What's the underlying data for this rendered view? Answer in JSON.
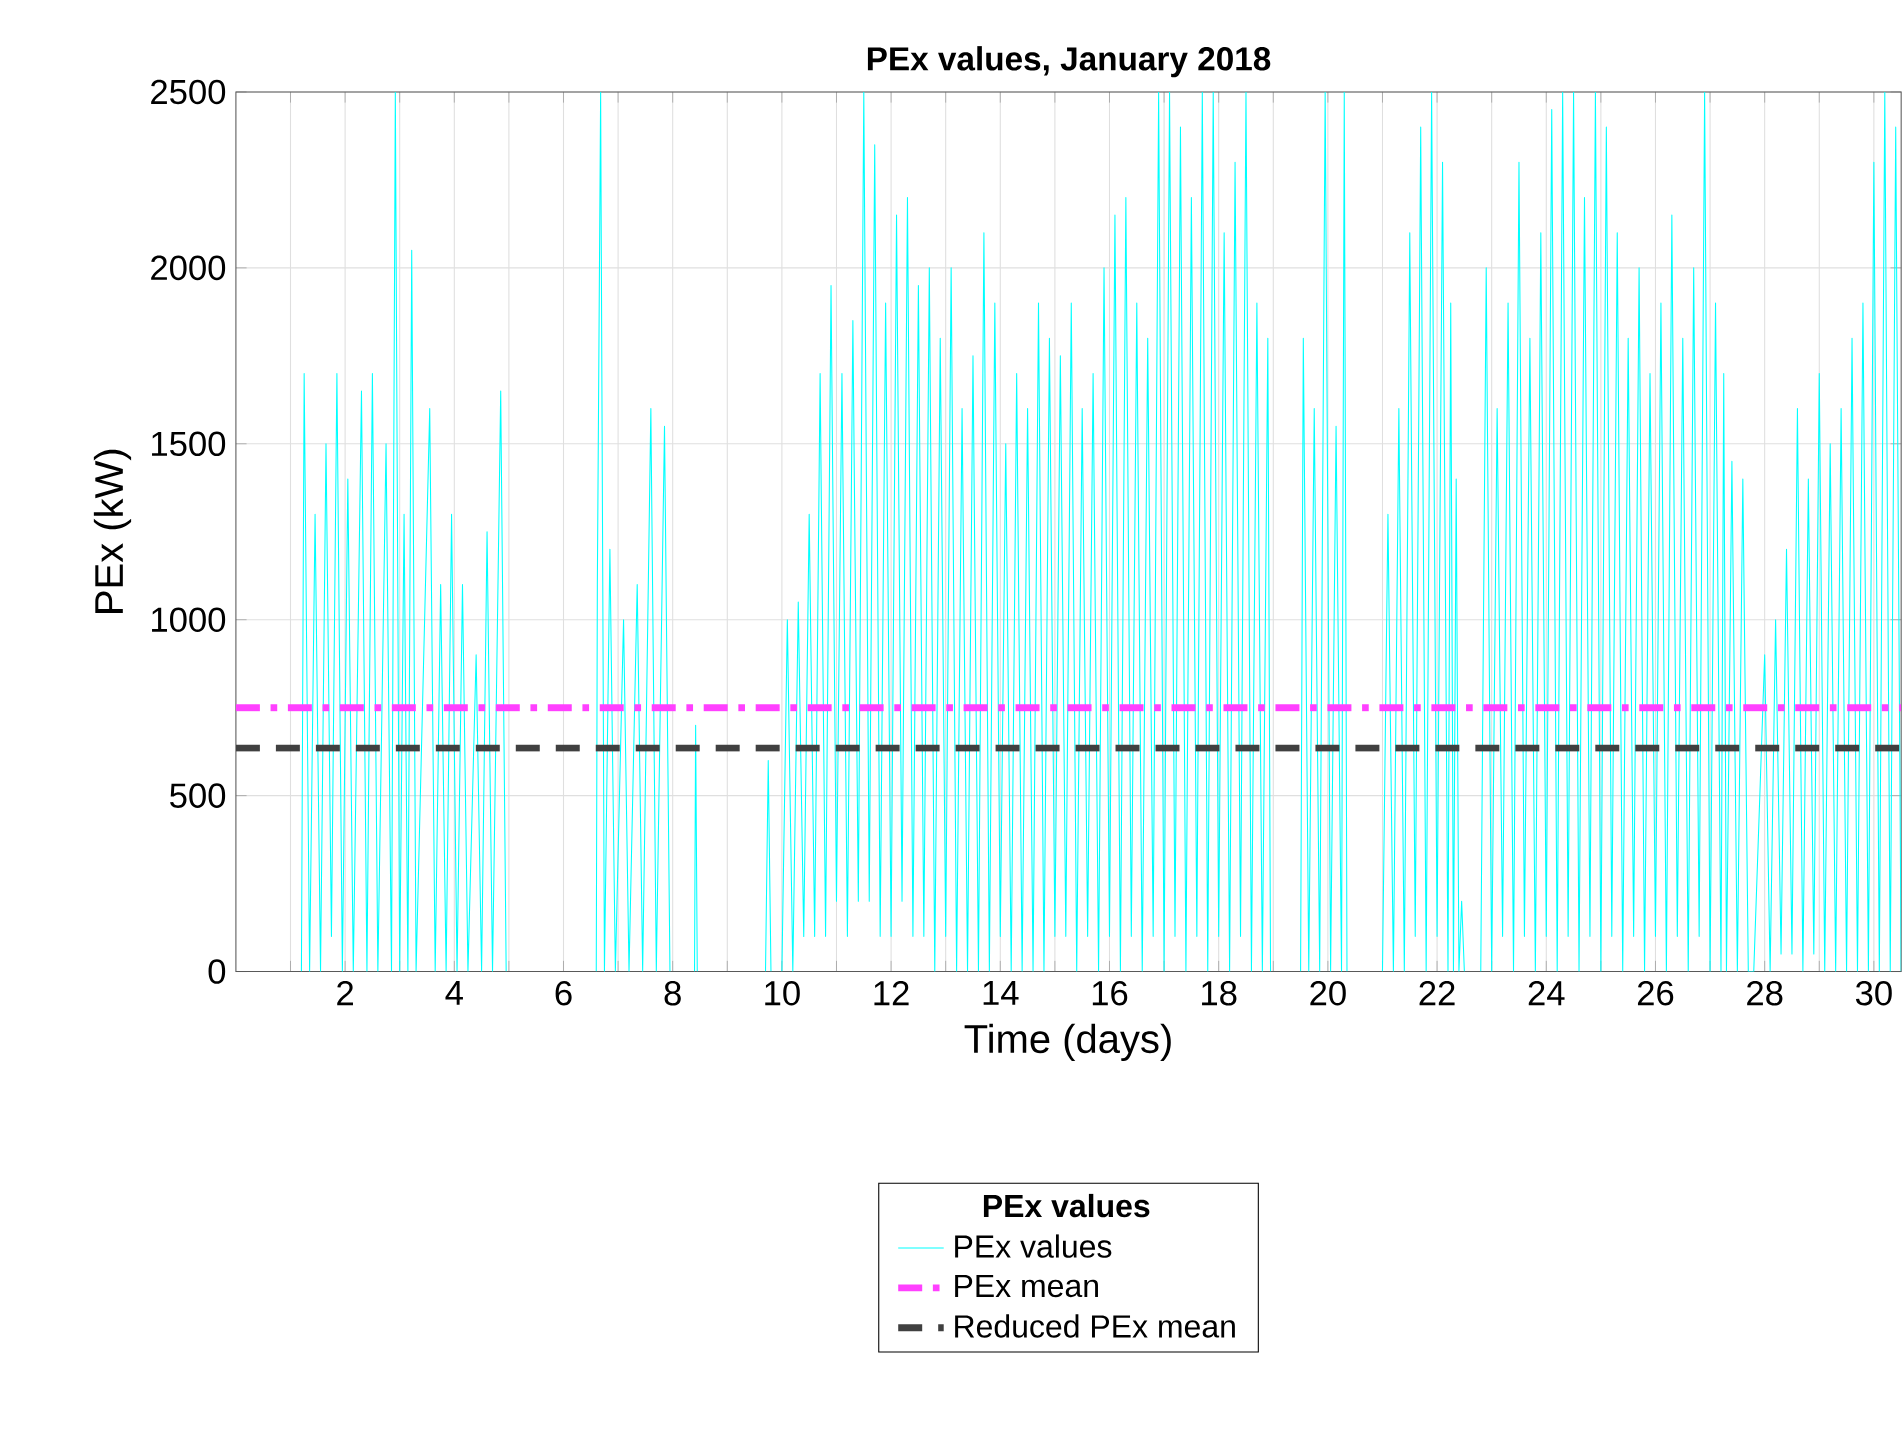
{
  "chart_data": {
    "type": "line",
    "title": "PEx values, January 2018",
    "xlabel": "Time (days)",
    "ylabel": "PEx (kW)",
    "legend_title": "PEx values",
    "legend": "bottom",
    "grid": true,
    "xlim": [
      0,
      30.5
    ],
    "ylim": [
      0,
      2500
    ],
    "xticks": [
      {
        "value": 1,
        "label": null
      },
      2,
      {
        "value": 3,
        "label": null
      },
      4,
      {
        "value": 5,
        "label": null
      },
      6,
      {
        "value": 7,
        "label": null
      },
      8,
      {
        "value": 9,
        "label": null
      },
      10,
      {
        "value": 11,
        "label": null
      },
      12,
      {
        "value": 13,
        "label": null
      },
      14,
      {
        "value": 15,
        "label": null
      },
      16,
      {
        "value": 17,
        "label": null
      },
      18,
      {
        "value": 19,
        "label": null
      },
      20,
      {
        "value": 21,
        "label": null
      },
      22,
      {
        "value": 23,
        "label": null
      },
      24,
      {
        "value": 25,
        "label": null
      },
      26,
      {
        "value": 27,
        "label": null
      },
      28,
      {
        "value": 29,
        "label": null
      },
      30
    ],
    "yticks": [
      0,
      500,
      1000,
      1500,
      2000,
      2500
    ],
    "series": [
      {
        "name": "PEx values",
        "color": "#00ffff",
        "x": [
          1.2,
          1.25,
          1.35,
          1.45,
          1.55,
          1.65,
          1.75,
          1.85,
          1.95,
          2.05,
          2.15,
          2.3,
          2.4,
          2.5,
          2.6,
          2.75,
          2.85,
          2.92,
          3.0,
          3.08,
          3.15,
          3.22,
          3.3,
          3.55,
          3.65,
          3.75,
          3.85,
          3.95,
          4.05,
          4.15,
          4.25,
          4.4,
          4.5,
          4.6,
          4.7,
          4.85,
          4.95,
          5.5,
          6.6,
          6.62,
          6.68,
          6.75,
          6.85,
          6.95,
          7.1,
          7.2,
          7.35,
          7.45,
          7.6,
          7.7,
          7.85,
          7.95,
          8.1,
          8.4,
          8.42,
          8.45,
          9.0,
          9.7,
          9.75,
          9.8,
          9.9,
          10.0,
          10.1,
          10.2,
          10.3,
          10.4,
          10.5,
          10.6,
          10.7,
          10.8,
          10.9,
          11.0,
          11.1,
          11.2,
          11.3,
          11.4,
          11.5,
          11.6,
          11.7,
          11.8,
          11.9,
          12.0,
          12.1,
          12.2,
          12.3,
          12.4,
          12.5,
          12.6,
          12.7,
          12.8,
          12.9,
          13.0,
          13.1,
          13.2,
          13.3,
          13.4,
          13.5,
          13.6,
          13.7,
          13.8,
          13.9,
          14.0,
          14.1,
          14.2,
          14.3,
          14.4,
          14.5,
          14.6,
          14.7,
          14.8,
          14.9,
          15.0,
          15.1,
          15.2,
          15.3,
          15.4,
          15.5,
          15.6,
          15.7,
          15.8,
          15.9,
          16.0,
          16.1,
          16.2,
          16.3,
          16.4,
          16.5,
          16.6,
          16.7,
          16.8,
          16.9,
          17.0,
          17.1,
          17.2,
          17.3,
          17.4,
          17.5,
          17.6,
          17.7,
          17.8,
          17.9,
          18.0,
          18.1,
          18.2,
          18.3,
          18.4,
          18.5,
          18.6,
          18.7,
          18.8,
          18.9,
          18.95,
          19.2,
          19.5,
          19.55,
          19.65,
          19.75,
          19.85,
          19.95,
          20.05,
          20.15,
          20.25,
          20.3,
          20.35,
          20.6,
          21.0,
          21.1,
          21.2,
          21.3,
          21.4,
          21.5,
          21.6,
          21.7,
          21.8,
          21.9,
          22.0,
          22.1,
          22.2,
          22.25,
          22.3,
          22.35,
          22.4,
          22.45,
          22.5,
          22.6,
          22.8,
          22.9,
          23.0,
          23.1,
          23.2,
          23.3,
          23.4,
          23.5,
          23.6,
          23.7,
          23.8,
          23.9,
          24.0,
          24.1,
          24.2,
          24.3,
          24.4,
          24.5,
          24.6,
          24.7,
          24.8,
          24.9,
          25.0,
          25.1,
          25.2,
          25.3,
          25.4,
          25.5,
          25.6,
          25.7,
          25.8,
          25.9,
          26.0,
          26.1,
          26.2,
          26.3,
          26.4,
          26.5,
          26.6,
          26.7,
          26.8,
          26.9,
          27.0,
          27.1,
          27.2,
          27.25,
          27.3,
          27.4,
          27.5,
          27.6,
          27.7,
          27.8,
          28.0,
          28.1,
          28.2,
          28.3,
          28.4,
          28.5,
          28.6,
          28.7,
          28.8,
          28.9,
          29.0,
          29.1,
          29.2,
          29.3,
          29.4,
          29.5,
          29.6,
          29.7,
          29.8,
          29.9,
          30.0,
          30.1,
          30.2,
          30.3,
          30.4,
          30.5
        ],
        "values": [
          0,
          1700,
          0,
          1300,
          0,
          1500,
          100,
          1700,
          0,
          1400,
          0,
          1650,
          0,
          1700,
          0,
          1500,
          0,
          2500,
          0,
          1300,
          0,
          2050,
          0,
          1600,
          0,
          1100,
          0,
          1300,
          0,
          1100,
          0,
          900,
          0,
          1250,
          0,
          1650,
          0,
          null,
          0,
          1100,
          2500,
          0,
          1200,
          0,
          1000,
          0,
          1100,
          0,
          1600,
          0,
          1550,
          0,
          null,
          0,
          700,
          0,
          null,
          0,
          600,
          0,
          null,
          0,
          1000,
          0,
          1050,
          100,
          1300,
          100,
          1700,
          100,
          1950,
          200,
          1700,
          100,
          1850,
          200,
          2500,
          200,
          2350,
          100,
          1900,
          100,
          2150,
          200,
          2200,
          100,
          1950,
          100,
          2000,
          0,
          1800,
          100,
          2000,
          0,
          1600,
          0,
          1750,
          0,
          2100,
          0,
          1900,
          100,
          1500,
          0,
          1700,
          0,
          1600,
          0,
          1900,
          0,
          1800,
          100,
          1750,
          100,
          1900,
          0,
          1600,
          100,
          1700,
          0,
          2000,
          100,
          2150,
          0,
          2200,
          100,
          1900,
          0,
          1800,
          100,
          2500,
          0,
          2500,
          100,
          2400,
          0,
          2200,
          100,
          2500,
          0,
          2500,
          100,
          2100,
          0,
          2300,
          100,
          2500,
          0,
          1900,
          0,
          1800,
          0,
          null,
          0,
          1800,
          0,
          1600,
          0,
          2500,
          0,
          1550,
          0,
          2500,
          0,
          null,
          0,
          1300,
          0,
          1600,
          0,
          2100,
          100,
          2400,
          0,
          2500,
          100,
          2300,
          0,
          1900,
          0,
          1400,
          0,
          200,
          0,
          null,
          0,
          2000,
          0,
          1600,
          100,
          1900,
          0,
          2300,
          100,
          1800,
          0,
          2100,
          100,
          2450,
          0,
          2500,
          100,
          2500,
          0,
          2200,
          100,
          2500,
          0,
          2400,
          100,
          2100,
          0,
          1800,
          100,
          2000,
          0,
          1700,
          100,
          1900,
          0,
          2150,
          100,
          1800,
          0,
          2000,
          100,
          2500,
          0,
          1900,
          0,
          1700,
          0,
          1450,
          0,
          1400,
          0,
          0,
          900,
          0,
          1000,
          50,
          1200,
          50,
          1600,
          0,
          1400,
          50,
          1700,
          0,
          1500,
          0,
          1600,
          0,
          1800,
          0,
          1900,
          0,
          2300,
          0,
          2500,
          0,
          2400,
          0
        ]
      }
    ],
    "ref_lines": [
      {
        "axis": "y",
        "value": 750,
        "label": "PEx mean",
        "color": "#ff40ff",
        "line_style": "dashdot"
      },
      {
        "axis": "y",
        "value": 635,
        "label": "Reduced PEx mean",
        "color": "#404040",
        "line_style": "dashed"
      }
    ]
  }
}
